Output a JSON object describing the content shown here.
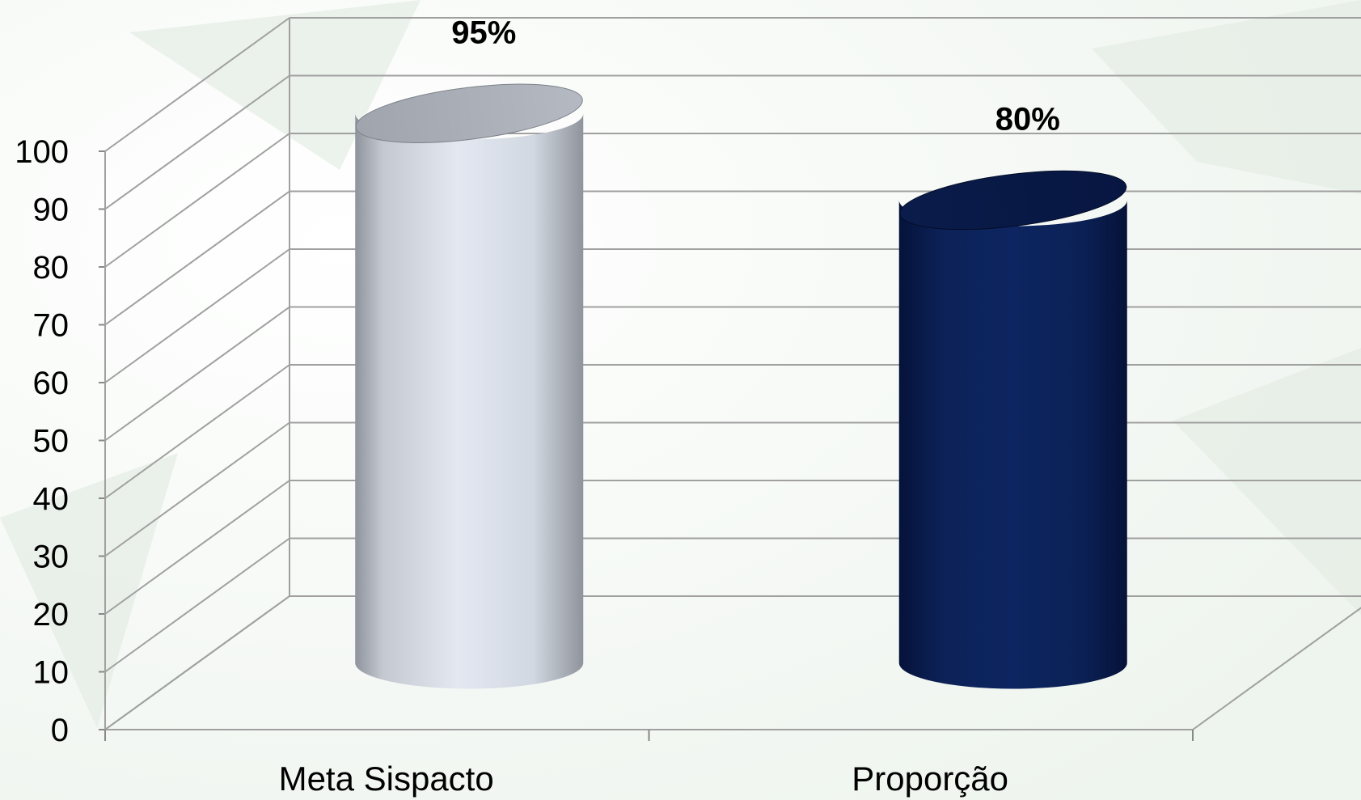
{
  "chart_data": {
    "type": "bar",
    "style": "3d-cylinder",
    "categories": [
      "Meta Sispacto",
      "Proporção"
    ],
    "values": [
      95,
      80
    ],
    "data_labels": [
      "95%",
      "80%"
    ],
    "ylim": [
      0,
      100
    ],
    "yticks": [
      0,
      10,
      20,
      30,
      40,
      50,
      60,
      70,
      80,
      90,
      100
    ],
    "ytick_labels": [
      "0",
      "10",
      "20",
      "30",
      "40",
      "50",
      "60",
      "70",
      "80",
      "90",
      "100"
    ],
    "grid": true,
    "legend": "none",
    "colors": [
      "#d9dee6",
      "#0b2257"
    ]
  }
}
